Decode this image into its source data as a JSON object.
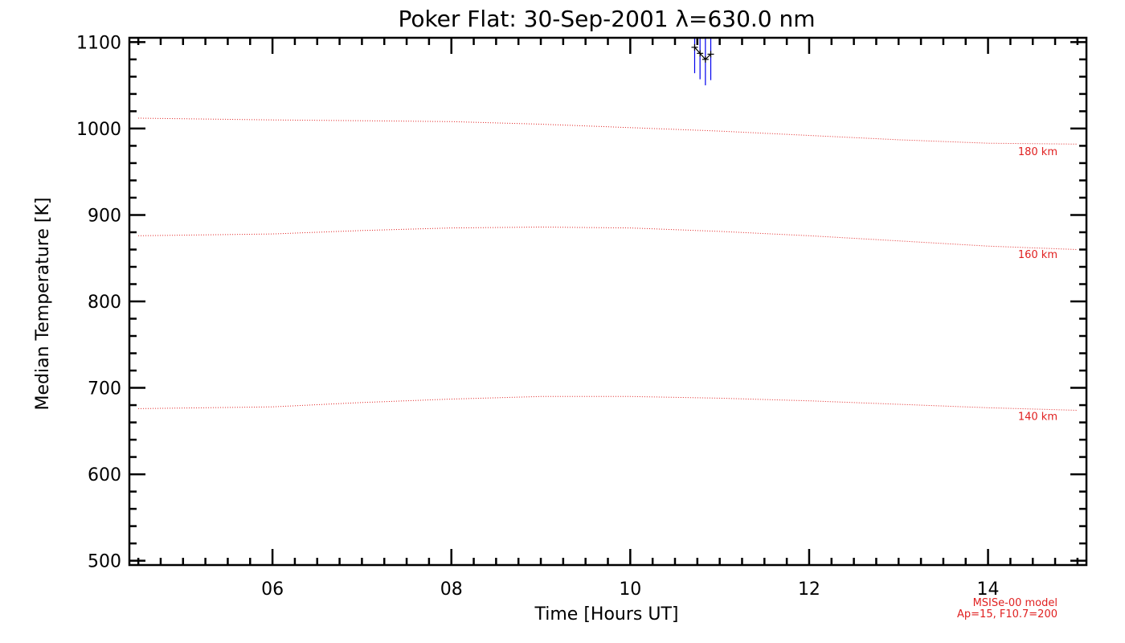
{
  "chart_data": {
    "type": "line",
    "title": "Poker Flat: 30-Sep-2001 λ=630.0 nm",
    "xlabel": "Time [Hours UT]",
    "ylabel": "Median Temperature [K]",
    "xlim": [
      4.4,
      15.1
    ],
    "ylim": [
      495,
      1105
    ],
    "x_tick_labels": [
      "06",
      "08",
      "10",
      "12",
      "14"
    ],
    "x_tick_values": [
      6,
      8,
      10,
      12,
      14
    ],
    "y_tick_values": [
      500,
      600,
      700,
      800,
      900,
      1000,
      1100
    ],
    "model_series": [
      {
        "name": "180 km",
        "color": "#e02020",
        "x": [
          4.5,
          6,
          7,
          8,
          9,
          10,
          11,
          12,
          13,
          14,
          15
        ],
        "y": [
          1012,
          1010,
          1009,
          1008,
          1005,
          1001,
          997,
          992,
          987,
          983,
          982
        ]
      },
      {
        "name": "160 km",
        "color": "#e02020",
        "x": [
          4.5,
          6,
          7,
          8,
          9,
          10,
          11,
          12,
          13,
          14,
          15
        ],
        "y": [
          876,
          878,
          882,
          885,
          886,
          885,
          881,
          876,
          870,
          864,
          860
        ]
      },
      {
        "name": "140 km",
        "color": "#e02020",
        "x": [
          4.5,
          6,
          7,
          8,
          9,
          10,
          11,
          12,
          13,
          14,
          15
        ],
        "y": [
          676,
          678,
          683,
          687,
          690,
          690,
          688,
          685,
          681,
          677,
          674
        ]
      }
    ],
    "measured": {
      "name": "Median temperature",
      "color": "#000000",
      "errorbar_color": "#0000ee",
      "x": [
        10.72,
        10.78,
        10.84,
        10.9
      ],
      "y": [
        1094,
        1087,
        1080,
        1086
      ],
      "yerr": [
        30,
        30,
        30,
        30
      ]
    },
    "model_note_line1": "MSISe-00 model",
    "model_note_line2": "Ap=15, F10.7=200"
  }
}
